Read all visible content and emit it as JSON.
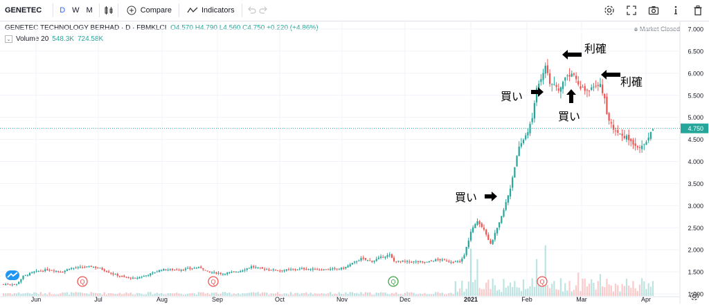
{
  "toolbar": {
    "symbol": "GENETEC",
    "intervals": [
      "D",
      "W",
      "M"
    ],
    "compare_label": "Compare",
    "indicators_label": "Indicators"
  },
  "legend": {
    "title": "GENETEC TECHNOLOGY BERHAD · D · FBMKLCI",
    "open": "O4.570",
    "high": "H4.790",
    "low": "L4.560",
    "close": "C4.750",
    "change": "+0.220 (+4.86%)",
    "volume_label": "Volume 20",
    "volume_value": "548.3K",
    "volume_ma": "724.58K",
    "market_status": "Market Closed"
  },
  "annotations": {
    "buy1": "買い",
    "buy2": "買い",
    "buy3": "買い",
    "profit1": "利確",
    "profit2": "利確"
  },
  "chart_data": {
    "type": "candlestick",
    "title": "GENETEC TECHNOLOGY BERHAD · D · FBMKLCI",
    "y_ticks": [
      "7.000",
      "6.500",
      "6.000",
      "5.500",
      "5.000",
      "4.500",
      "4.000",
      "3.500",
      "3.000",
      "2.500",
      "2.000",
      "1.500",
      "1.000"
    ],
    "ylim": [
      0.8,
      7.2
    ],
    "x_ticks": [
      "Jun",
      "Jul",
      "Aug",
      "Sep",
      "Oct",
      "Nov",
      "Dec",
      "2021",
      "Feb",
      "Mar",
      "Apr"
    ],
    "last_price_label": "4.750",
    "last_price": 4.75,
    "up_color": "#26a69a",
    "down_color": "#ef5350",
    "earnings_markers": [
      {
        "label": "Q",
        "month": "Jul",
        "color": "#ef5350"
      },
      {
        "label": "Q",
        "month": "Sep",
        "color": "#ef5350"
      },
      {
        "label": "Q",
        "month": "Dec",
        "color": "#43a047"
      },
      {
        "label": "Q",
        "month": "Feb",
        "color": "#ef5350"
      }
    ],
    "close_path": [
      [
        0,
        1.22
      ],
      [
        6,
        1.22
      ],
      [
        9,
        1.4
      ],
      [
        14,
        1.5
      ],
      [
        20,
        1.55
      ],
      [
        27,
        1.5
      ],
      [
        30,
        1.58
      ],
      [
        40,
        1.62
      ],
      [
        44,
        1.58
      ],
      [
        50,
        1.45
      ],
      [
        55,
        1.38
      ],
      [
        60,
        1.35
      ],
      [
        65,
        1.42
      ],
      [
        72,
        1.55
      ],
      [
        80,
        1.55
      ],
      [
        90,
        1.6
      ],
      [
        93,
        1.5
      ],
      [
        100,
        1.46
      ],
      [
        108,
        1.52
      ],
      [
        113,
        1.62
      ],
      [
        118,
        1.57
      ],
      [
        126,
        1.53
      ],
      [
        136,
        1.57
      ],
      [
        146,
        1.55
      ],
      [
        155,
        1.58
      ],
      [
        163,
        1.8
      ],
      [
        168,
        1.74
      ],
      [
        173,
        1.85
      ],
      [
        176,
        1.88
      ],
      [
        178,
        1.74
      ],
      [
        185,
        1.73
      ],
      [
        193,
        1.72
      ],
      [
        198,
        1.78
      ],
      [
        203,
        1.74
      ],
      [
        208,
        1.72
      ],
      [
        210,
        1.88
      ],
      [
        213,
        2.4
      ],
      [
        216,
        2.65
      ],
      [
        219,
        2.48
      ],
      [
        222,
        2.12
      ],
      [
        226,
        2.6
      ],
      [
        228,
        2.9
      ],
      [
        231,
        3.4
      ],
      [
        233,
        3.9
      ],
      [
        235,
        4.3
      ],
      [
        239,
        4.7
      ],
      [
        241,
        4.95
      ],
      [
        243,
        5.7
      ],
      [
        245,
        5.9
      ],
      [
        247,
        6.2
      ],
      [
        249,
        5.8
      ],
      [
        251,
        5.7
      ],
      [
        253,
        5.6
      ],
      [
        256,
        5.9
      ],
      [
        259,
        6.0
      ],
      [
        263,
        5.7
      ],
      [
        265,
        5.6
      ],
      [
        269,
        5.65
      ],
      [
        272,
        5.8
      ],
      [
        274,
        5.4
      ],
      [
        275,
        5.05
      ],
      [
        278,
        4.75
      ],
      [
        281,
        4.62
      ],
      [
        284,
        4.55
      ],
      [
        286,
        4.45
      ],
      [
        289,
        4.35
      ],
      [
        291,
        4.32
      ],
      [
        294,
        4.53
      ],
      [
        296,
        4.75
      ]
    ],
    "volume_spikes": [
      {
        "day": 213,
        "value": "high"
      },
      {
        "day": 216,
        "value": "high"
      },
      {
        "day": 243,
        "value": "high"
      },
      {
        "day": 247,
        "value": "high"
      },
      {
        "day": 262,
        "value": "medium"
      },
      {
        "day": 272,
        "value": "medium"
      }
    ]
  }
}
